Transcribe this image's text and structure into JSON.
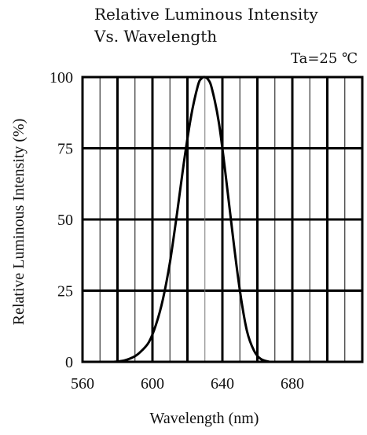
{
  "chart_data": {
    "type": "line",
    "title": "Relative Luminous Intensity",
    "subtitle": "Vs. Wavelength",
    "annotation": "Ta=25 ℃",
    "xlabel": "Wavelength (nm)",
    "ylabel": "Relative  Luminous  Intensity (%)",
    "xlim": [
      560,
      720
    ],
    "ylim": [
      0,
      100
    ],
    "x_ticks": [
      560,
      600,
      640,
      680
    ],
    "y_ticks": [
      0,
      25,
      50,
      75,
      100
    ],
    "grid": true,
    "peak_marker_x": 630,
    "series": [
      {
        "x": [
          578,
          584,
          590,
          594,
          598,
          602,
          606,
          610,
          614,
          618,
          622,
          626,
          628,
          630,
          632,
          634,
          638,
          642,
          646,
          650,
          654,
          658,
          662,
          667
        ],
        "y": [
          0,
          0.5,
          2,
          4,
          7,
          13,
          22,
          35,
          52,
          70,
          86,
          97,
          99.5,
          100,
          99,
          96,
          84,
          65,
          44,
          25,
          11,
          4,
          1,
          0
        ]
      }
    ],
    "line_color": "#000000"
  }
}
